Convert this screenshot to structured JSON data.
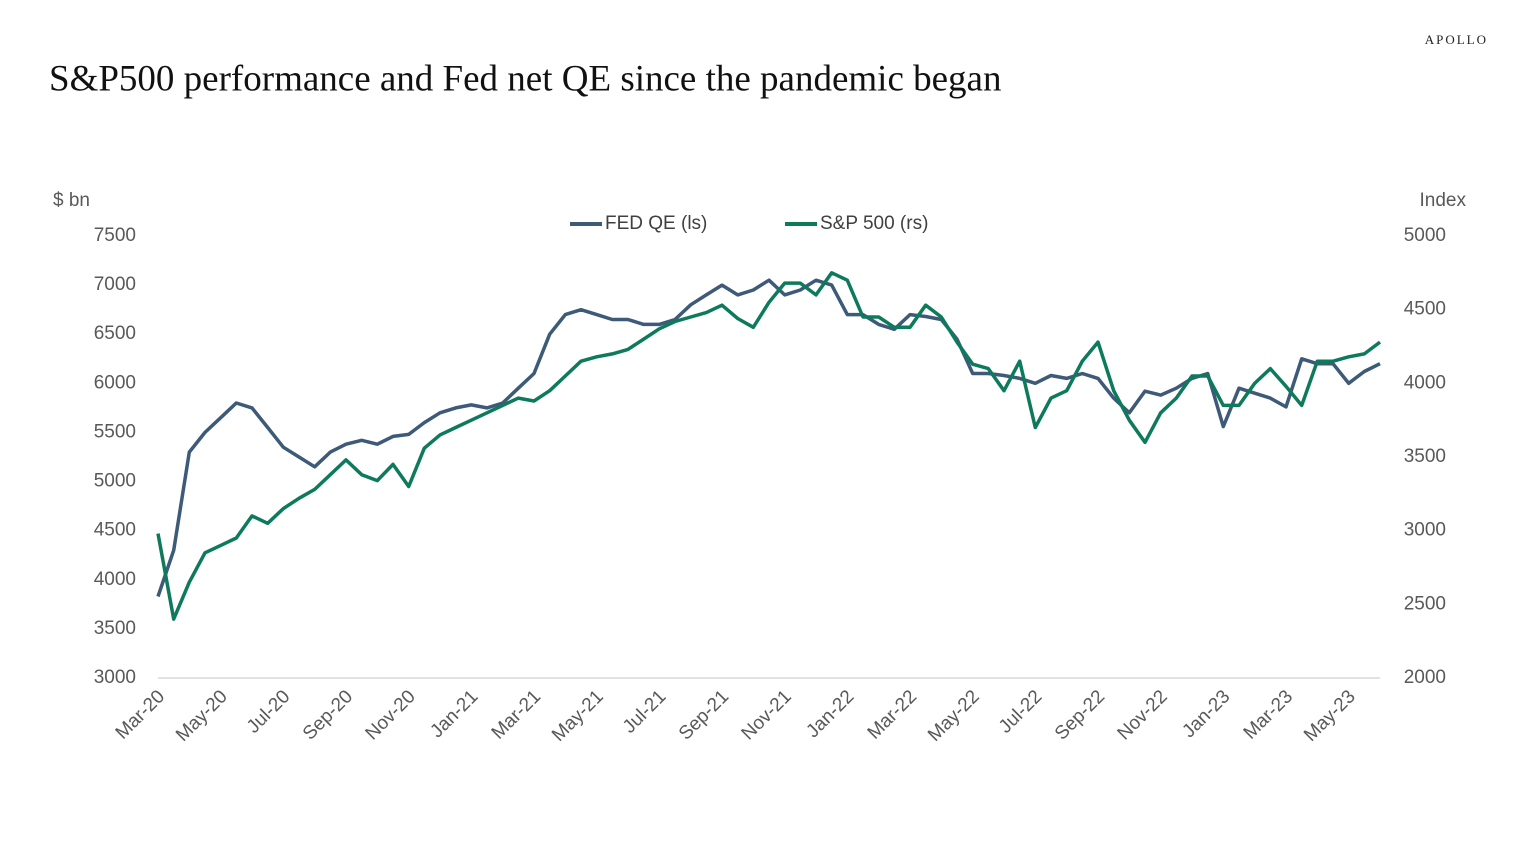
{
  "brand": "APOLLO",
  "chart_data": {
    "type": "line",
    "title": "S&P500 performance and Fed net QE since the pandemic began",
    "y_label": "$ bn",
    "y2_label": "Index",
    "categories": [
      "Mar-20",
      null,
      null,
      null,
      "May-20",
      null,
      null,
      null,
      "Jul-20",
      null,
      null,
      null,
      "Sep-20",
      null,
      null,
      null,
      "Nov-20",
      null,
      null,
      null,
      "Jan-21",
      null,
      null,
      null,
      "Mar-21",
      null,
      null,
      null,
      "May-21",
      null,
      null,
      null,
      "Jul-21",
      null,
      null,
      null,
      "Sep-21",
      null,
      null,
      null,
      "Nov-21",
      null,
      null,
      null,
      "Jan-22",
      null,
      null,
      null,
      "Mar-22",
      null,
      null,
      null,
      "May-22",
      null,
      null,
      null,
      "Jul-22",
      null,
      null,
      null,
      "Sep-22",
      null,
      null,
      null,
      "Nov-22",
      null,
      null,
      null,
      "Jan-23",
      null,
      null,
      null,
      "Mar-23",
      null,
      null,
      null,
      "May-23",
      null,
      null
    ],
    "series": [
      {
        "name": "FED QE (ls)",
        "color": "#3d5a78",
        "values": [
          3830,
          4300,
          5300,
          5500,
          5650,
          5800,
          5750,
          5550,
          5350,
          5250,
          5150,
          5300,
          5380,
          5420,
          5380,
          5460,
          5480,
          5600,
          5700,
          5750,
          5780,
          5750,
          5800,
          5950,
          6100,
          6500,
          6700,
          6750,
          6700,
          6650,
          6650,
          6600,
          6600,
          6650,
          6800,
          6900,
          7000,
          6900,
          6950,
          7050,
          6900,
          6950,
          7050,
          7000,
          6700,
          6700,
          6600,
          6550,
          6700,
          6680,
          6650,
          6450,
          6100,
          6100,
          6080,
          6050,
          6000,
          6080,
          6050,
          6100,
          6050,
          5850,
          5700,
          5920,
          5880,
          5950,
          6050,
          6100,
          5560,
          5950,
          5900,
          5850,
          5760,
          6250,
          6200,
          6200,
          6000,
          6120,
          6200
        ]
      },
      {
        "name": "S&P 500 (rs)",
        "color": "#0e7a5c",
        "axis": "y2",
        "values": [
          2980,
          2400,
          2650,
          2850,
          2900,
          2950,
          3100,
          3050,
          3150,
          3220,
          3280,
          3380,
          3480,
          3380,
          3340,
          3450,
          3300,
          3560,
          3650,
          3700,
          3750,
          3800,
          3850,
          3900,
          3880,
          3950,
          4050,
          4150,
          4180,
          4200,
          4230,
          4300,
          4370,
          4420,
          4450,
          4480,
          4530,
          4440,
          4380,
          4550,
          4680,
          4680,
          4600,
          4750,
          4700,
          4450,
          4450,
          4380,
          4380,
          4530,
          4450,
          4280,
          4130,
          4100,
          3950,
          4150,
          3700,
          3900,
          3950,
          4150,
          4280,
          3950,
          3750,
          3600,
          3800,
          3900,
          4050,
          4050,
          3850,
          3850,
          4000,
          4100,
          3980,
          3850,
          4150,
          4150,
          4180,
          4200,
          4280
        ]
      }
    ],
    "ylim": [
      3000,
      7500
    ],
    "yticks": [
      3000,
      3500,
      4000,
      4500,
      5000,
      5500,
      6000,
      6500,
      7000,
      7500
    ],
    "y2lim": [
      2000,
      5000
    ],
    "y2ticks": [
      2000,
      2500,
      3000,
      3500,
      4000,
      4500,
      5000
    ],
    "grid": false
  }
}
